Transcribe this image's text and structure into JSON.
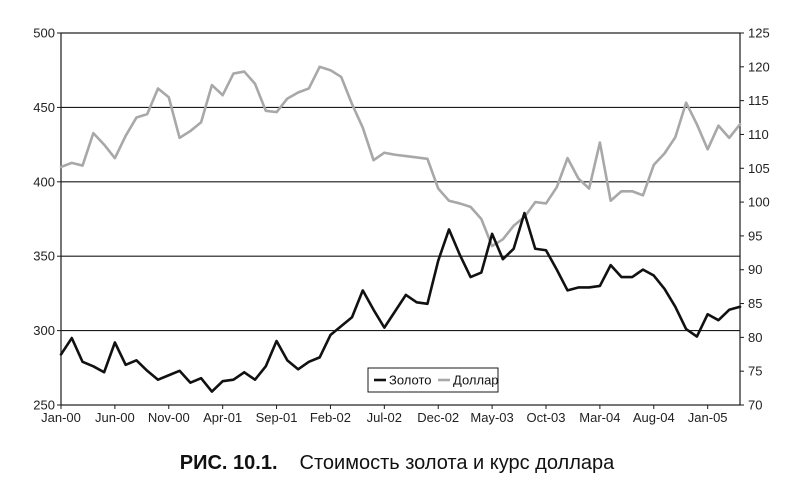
{
  "caption": {
    "figure": "РИС. 10.1.",
    "text": "Стоимость золота и курс доллара"
  },
  "chart_data": {
    "type": "line",
    "title": "",
    "xlabel": "",
    "ylabel_left": "",
    "ylabel_right": "",
    "x_tick_labels": [
      "Jan-00",
      "Jun-00",
      "Nov-00",
      "Apr-01",
      "Sep-01",
      "Feb-02",
      "Jul-02",
      "Dec-02",
      "May-03",
      "Oct-03",
      "Mar-04",
      "Aug-04",
      "Jan-05"
    ],
    "y_left": {
      "ylim": [
        250,
        500
      ],
      "ticks": [
        250,
        300,
        350,
        400,
        450,
        500
      ]
    },
    "y_right": {
      "ylim": [
        70,
        125
      ],
      "ticks": [
        70,
        75,
        80,
        85,
        90,
        95,
        100,
        105,
        110,
        115,
        120,
        125
      ]
    },
    "gridlines": "horizontal at 300, 350, 400, 450 (left axis)",
    "legend_position": "bottom-center",
    "series": [
      {
        "name": "Золото",
        "axis": "left",
        "color": "#111111",
        "values": [
          284,
          295,
          279,
          276,
          272,
          292,
          277,
          280,
          273,
          267,
          270,
          273,
          265,
          268,
          259,
          266,
          267,
          272,
          267,
          276,
          293,
          280,
          274,
          279,
          282,
          297,
          303,
          309,
          327,
          314,
          302,
          313,
          324,
          319,
          318,
          347,
          368,
          351,
          336,
          339,
          365,
          348,
          355,
          379,
          355,
          354,
          341,
          327,
          329,
          329,
          330,
          344,
          336,
          336,
          341,
          337,
          328,
          316,
          301,
          296,
          311,
          307,
          314,
          316
        ]
      },
      {
        "name": "Доллар",
        "axis": "right",
        "color": "#a8a8a8",
        "values": [
          105.2,
          105.8,
          105.4,
          110.2,
          108.5,
          106.5,
          109.8,
          112.5,
          113,
          116.8,
          115.5,
          109.5,
          110.5,
          111.8,
          117.3,
          115.8,
          119,
          119.3,
          117.5,
          113.5,
          113.3,
          115.3,
          116.2,
          116.8,
          120,
          119.5,
          118.5,
          114.5,
          111,
          106.2,
          107.3,
          107,
          106.8,
          106.6,
          106.4,
          102,
          100.2,
          99.8,
          99.3,
          97.5,
          93.5,
          94.5,
          96.5,
          97.8,
          100,
          99.8,
          102.2,
          106.5,
          103.5,
          102,
          108.8,
          100.2,
          101.6,
          101.6,
          101,
          105.5,
          107.2,
          109.6,
          114.7,
          111.5,
          107.8,
          111.3,
          109.5,
          111.5
        ]
      }
    ]
  }
}
